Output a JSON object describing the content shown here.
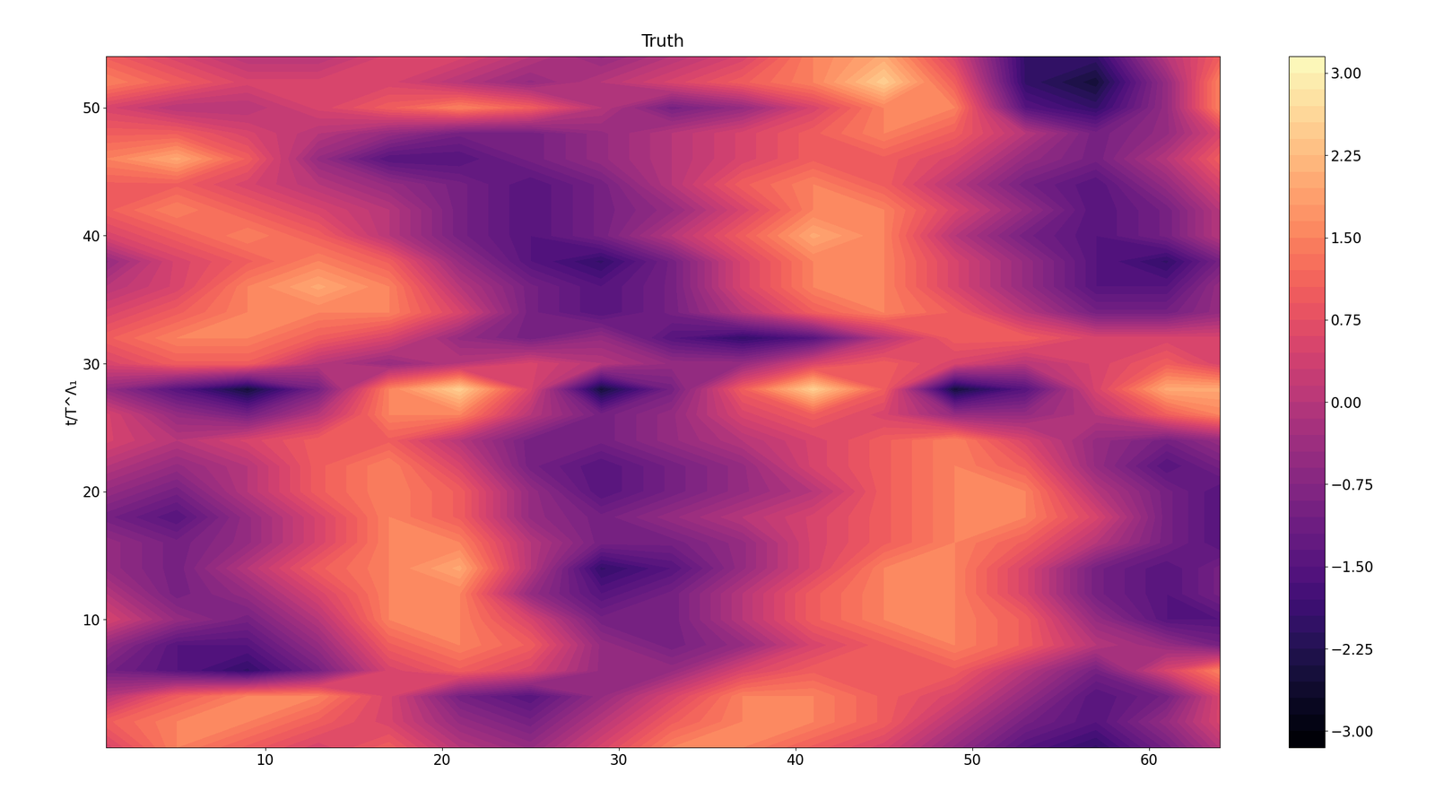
{
  "chart_data": {
    "type": "contourf",
    "title": "Truth",
    "y_label": "t/T^Λ₁",
    "x": [
      1,
      5,
      9,
      13,
      17,
      21,
      25,
      29,
      33,
      37,
      41,
      45,
      49,
      53,
      57,
      61,
      64
    ],
    "y": [
      0,
      2,
      4,
      6,
      8,
      10,
      12,
      14,
      16,
      18,
      20,
      22,
      24,
      26,
      28,
      30,
      32,
      34,
      36,
      38,
      40,
      42,
      44,
      46,
      48,
      50,
      52,
      54
    ],
    "cells": [
      [
        0.5,
        1.5,
        1.0,
        0.5,
        1.0,
        0.0,
        -0.5,
        0.5,
        1.5,
        1.5,
        1.0,
        0.5,
        -0.5,
        -1.5,
        -2.0,
        -1.0,
        0.0
      ],
      [
        1.0,
        1.5,
        1.5,
        1.0,
        0.5,
        -0.5,
        -1.0,
        0.0,
        1.0,
        1.5,
        1.5,
        1.0,
        0.0,
        -1.0,
        -1.5,
        -0.5,
        0.5
      ],
      [
        0.0,
        1.0,
        1.5,
        1.5,
        0.5,
        -1.0,
        -1.5,
        -0.5,
        0.5,
        1.5,
        1.5,
        1.0,
        0.5,
        -0.5,
        -1.5,
        -1.0,
        0.5
      ],
      [
        -1.0,
        -1.5,
        -2.0,
        -1.0,
        0.5,
        1.0,
        0.5,
        -0.5,
        -0.5,
        0.5,
        1.0,
        1.0,
        1.0,
        0.0,
        -1.0,
        0.5,
        1.5
      ],
      [
        -0.5,
        -1.5,
        -1.5,
        -0.5,
        1.0,
        1.5,
        1.0,
        -0.5,
        -1.0,
        -0.5,
        0.5,
        1.0,
        1.5,
        1.0,
        0.0,
        -0.5,
        -1.0
      ],
      [
        0.5,
        -0.5,
        -1.0,
        0.0,
        1.5,
        1.5,
        0.5,
        -1.0,
        -1.0,
        0.0,
        1.0,
        1.5,
        1.5,
        1.0,
        -0.5,
        -1.5,
        -1.5
      ],
      [
        0.0,
        -1.0,
        -0.5,
        0.5,
        1.5,
        1.5,
        -0.5,
        -1.5,
        -1.0,
        0.0,
        1.0,
        1.5,
        1.5,
        0.5,
        -1.0,
        -1.5,
        -1.0
      ],
      [
        -0.5,
        -1.0,
        0.0,
        1.0,
        1.5,
        2.0,
        0.0,
        -2.0,
        -1.5,
        -0.5,
        0.5,
        1.5,
        1.5,
        0.5,
        -1.0,
        -1.5,
        -1.0
      ],
      [
        -0.5,
        -1.0,
        -0.5,
        0.5,
        1.5,
        1.5,
        0.0,
        -1.0,
        -1.0,
        -0.5,
        0.5,
        1.0,
        1.5,
        1.0,
        0.0,
        -1.0,
        -1.5
      ],
      [
        -1.0,
        -1.5,
        -0.5,
        0.5,
        1.5,
        1.0,
        -0.5,
        -1.0,
        -0.5,
        0.0,
        0.5,
        1.0,
        1.5,
        1.5,
        0.5,
        -1.0,
        -1.5
      ],
      [
        -0.5,
        -1.0,
        0.0,
        1.0,
        1.5,
        1.0,
        -0.5,
        -1.5,
        -1.0,
        -0.5,
        0.0,
        1.0,
        1.5,
        1.5,
        0.0,
        -1.0,
        -1.5
      ],
      [
        0.0,
        -0.5,
        0.0,
        1.0,
        1.5,
        0.5,
        -1.0,
        -1.5,
        -1.0,
        -0.5,
        0.5,
        1.0,
        1.5,
        1.0,
        -0.5,
        -1.5,
        -1.0
      ],
      [
        0.5,
        0.0,
        0.5,
        1.0,
        1.0,
        0.0,
        -1.0,
        -1.0,
        -0.5,
        0.0,
        0.5,
        1.0,
        1.5,
        0.5,
        -0.5,
        -1.0,
        -0.5
      ],
      [
        0.5,
        -0.5,
        -1.0,
        0.0,
        1.5,
        1.5,
        0.0,
        -1.0,
        -0.5,
        0.5,
        1.0,
        0.5,
        -0.5,
        -0.5,
        0.0,
        1.0,
        1.5
      ],
      [
        -0.5,
        -1.5,
        -2.5,
        -1.0,
        1.5,
        2.5,
        0.5,
        -2.5,
        -1.0,
        1.0,
        2.5,
        1.0,
        -2.5,
        -1.5,
        0.5,
        2.0,
        2.0
      ],
      [
        0.5,
        1.0,
        1.0,
        0.0,
        -0.5,
        0.0,
        0.5,
        0.0,
        -0.5,
        -0.5,
        0.5,
        1.0,
        0.5,
        0.0,
        0.5,
        1.0,
        0.5
      ],
      [
        1.0,
        1.5,
        1.5,
        1.0,
        0.5,
        -0.5,
        -1.0,
        -0.5,
        -1.5,
        -2.0,
        -1.5,
        0.0,
        1.0,
        1.0,
        0.5,
        0.5,
        0.5
      ],
      [
        0.5,
        1.0,
        1.5,
        1.5,
        1.5,
        0.5,
        -1.0,
        -1.5,
        -1.0,
        0.0,
        1.0,
        1.5,
        1.0,
        0.0,
        -1.0,
        -1.0,
        -0.5
      ],
      [
        0.0,
        0.5,
        1.5,
        2.0,
        1.5,
        0.0,
        -1.0,
        -1.5,
        -1.0,
        0.5,
        1.5,
        1.5,
        0.5,
        -0.5,
        -1.5,
        -1.5,
        -0.5
      ],
      [
        -0.5,
        0.5,
        1.0,
        1.5,
        1.0,
        -0.5,
        -1.5,
        -2.0,
        -1.0,
        0.5,
        1.5,
        1.5,
        0.5,
        -0.5,
        -1.5,
        -2.0,
        -1.0
      ],
      [
        0.5,
        1.0,
        1.5,
        1.0,
        0.0,
        -1.0,
        -1.5,
        -1.0,
        0.0,
        1.0,
        2.0,
        1.5,
        0.0,
        -1.0,
        -1.5,
        -1.0,
        0.0
      ],
      [
        1.0,
        1.5,
        1.0,
        0.5,
        0.0,
        -1.0,
        -1.5,
        -1.0,
        -0.5,
        0.5,
        1.5,
        1.5,
        0.5,
        -0.5,
        -1.5,
        -1.0,
        0.0
      ],
      [
        1.0,
        1.0,
        0.5,
        0.0,
        -0.5,
        -1.0,
        -1.5,
        -1.0,
        0.0,
        1.0,
        1.5,
        1.0,
        0.0,
        -1.0,
        -1.5,
        -0.5,
        0.5
      ],
      [
        1.5,
        2.0,
        1.0,
        -0.5,
        -1.5,
        -1.5,
        -1.0,
        -0.5,
        0.0,
        0.5,
        1.0,
        1.0,
        0.5,
        -0.5,
        -1.0,
        0.0,
        1.0
      ],
      [
        1.0,
        1.0,
        0.5,
        0.0,
        -0.5,
        -1.0,
        -1.0,
        -0.5,
        0.0,
        0.5,
        1.0,
        1.5,
        1.0,
        0.0,
        -1.0,
        -0.5,
        0.5
      ],
      [
        0.5,
        0.0,
        0.0,
        0.5,
        1.0,
        1.5,
        1.0,
        0.0,
        -1.0,
        -0.5,
        0.5,
        1.5,
        1.5,
        -1.5,
        -2.0,
        -0.5,
        1.5
      ],
      [
        1.5,
        1.0,
        0.5,
        0.5,
        0.5,
        0.0,
        -0.5,
        0.0,
        0.5,
        1.0,
        1.5,
        2.5,
        1.0,
        -2.0,
        -2.5,
        -0.5,
        1.5
      ],
      [
        1.0,
        0.5,
        0.0,
        0.0,
        0.5,
        0.5,
        0.0,
        -0.5,
        0.0,
        0.5,
        1.5,
        2.0,
        0.5,
        -2.0,
        -2.0,
        0.0,
        1.0
      ]
    ],
    "xlim": [
      1,
      64
    ],
    "xticks": [
      10,
      20,
      30,
      40,
      50,
      60
    ],
    "ylim": [
      0,
      54
    ],
    "yticks": [
      10,
      20,
      30,
      40,
      50
    ],
    "color": "magma",
    "colorbar": {
      "range": [
        -3.15,
        3.15
      ],
      "ticks": [
        {
          "value": -3,
          "label": "−3.00"
        },
        {
          "value": -2.25,
          "label": "−2.25"
        },
        {
          "value": -1.5,
          "label": "−1.50"
        },
        {
          "value": -0.75,
          "label": "−0.75"
        },
        {
          "value": 0,
          "label": "0.00"
        },
        {
          "value": 0.75,
          "label": "0.75"
        },
        {
          "value": 1.5,
          "label": "1.50"
        },
        {
          "value": 2.25,
          "label": "2.25"
        },
        {
          "value": 3,
          "label": "3.00"
        }
      ]
    }
  }
}
